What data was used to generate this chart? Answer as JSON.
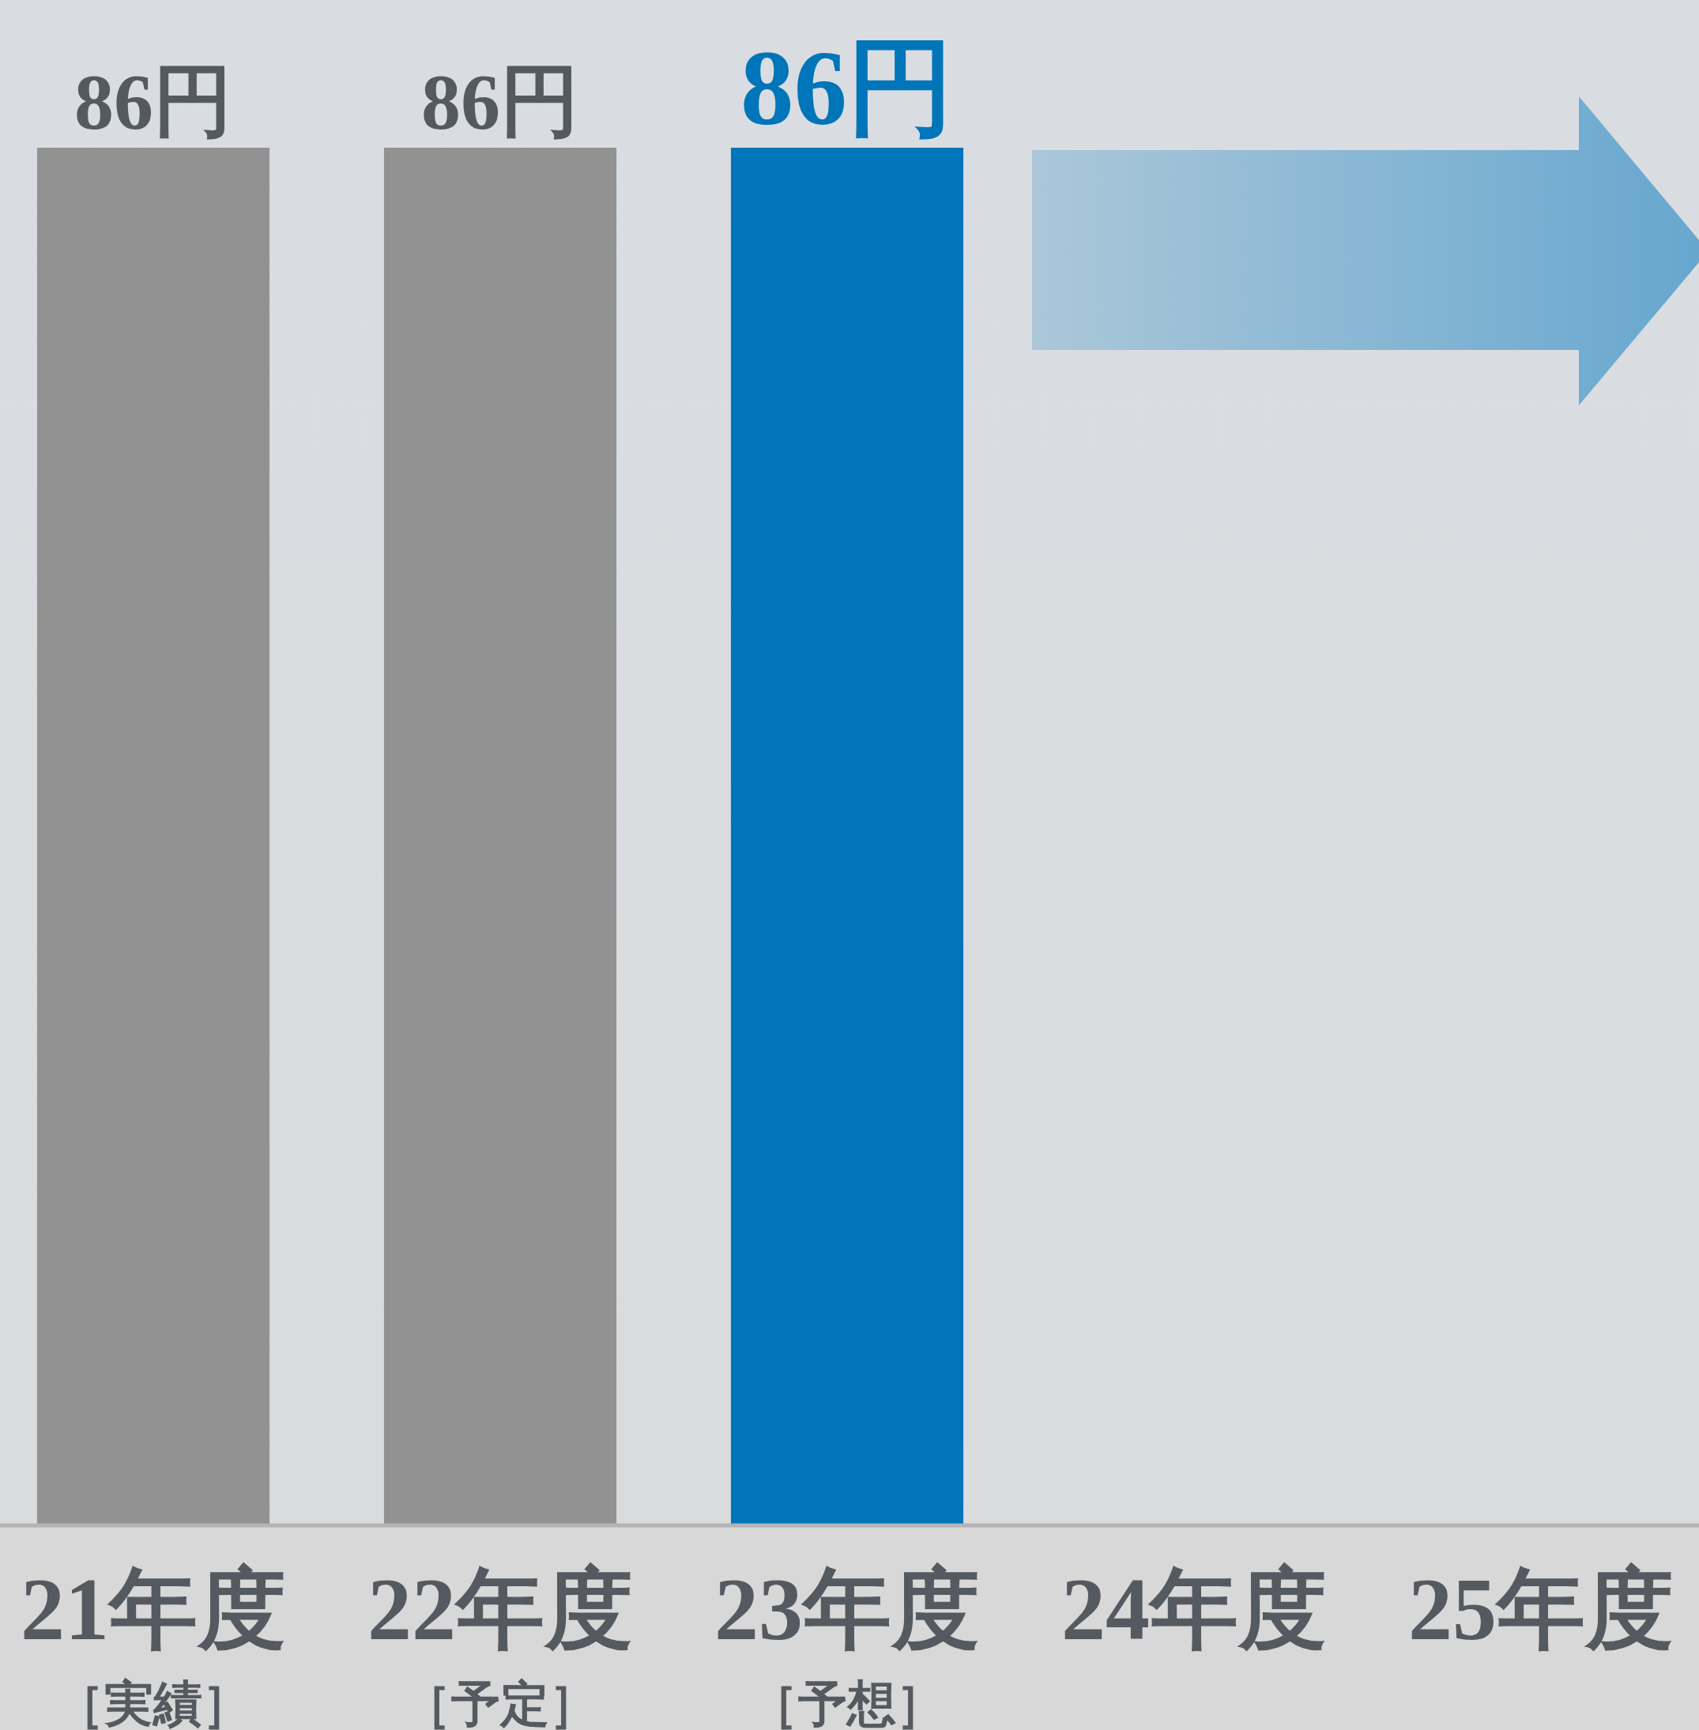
{
  "chart_data": {
    "type": "bar",
    "categories": [
      "21年度",
      "22年度",
      "23年度",
      "24年度",
      "25年度"
    ],
    "values": [
      86,
      86,
      86,
      null,
      null
    ],
    "colors": [
      "#929292",
      "#929292",
      "#0075b9",
      null,
      null
    ],
    "value_labels": [
      "86円",
      "86円",
      "86円",
      null,
      null
    ],
    "annotations": [
      "［実績］",
      "［予定］",
      "［予想］"
    ]
  }
}
